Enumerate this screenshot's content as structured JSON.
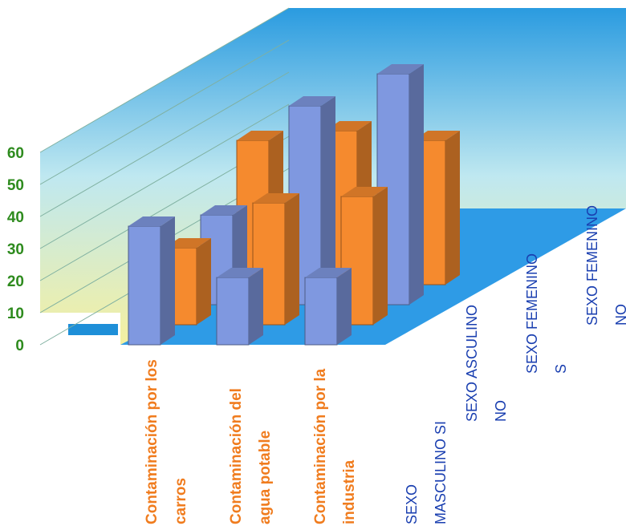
{
  "chart_data": {
    "type": "bar3d",
    "categories": [
      "Contaminación por los carros",
      "Contaminación del agua potable",
      "Contaminación por la industria"
    ],
    "series": [
      {
        "name": "SEXO MASCULINO SI",
        "color": "#7f98e0",
        "values": [
          37,
          21,
          21
        ]
      },
      {
        "name": "SEXO ASCULINO NO",
        "color": "#f58a2e",
        "values": [
          24,
          38,
          40
        ]
      },
      {
        "name": "SEXO FEMENINO S",
        "color": "#7f98e0",
        "values": [
          28,
          62,
          72
        ]
      },
      {
        "name": "SEXO FEMENINO NO",
        "color": "#f58a2e",
        "values": [
          45,
          48,
          45
        ]
      }
    ],
    "ylim": [
      0,
      60
    ],
    "yticks": [
      0,
      10,
      20,
      30,
      40,
      50,
      60
    ],
    "grid": true
  }
}
